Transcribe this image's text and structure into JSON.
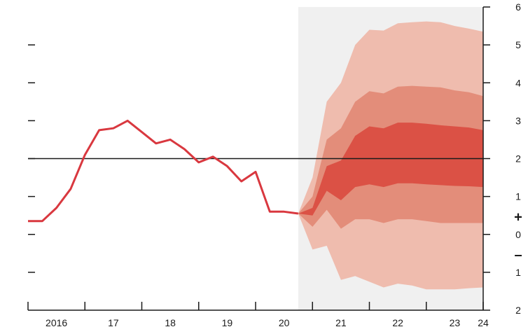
{
  "chart_data": {
    "type": "area",
    "title": "",
    "xlabel": "",
    "ylabel": "",
    "x_tick_labels": [
      {
        "label": "2016",
        "x": 2016.0
      },
      {
        "label": "17",
        "x": 2017.0
      },
      {
        "label": "18",
        "x": 2018.0
      },
      {
        "label": "19",
        "x": 2019.0
      },
      {
        "label": "20",
        "x": 2020.0
      },
      {
        "label": "21",
        "x": 2021.0
      },
      {
        "label": "22",
        "x": 2022.0
      },
      {
        "label": "23",
        "x": 2023.0
      },
      {
        "label": "24",
        "x": 2023.5
      }
    ],
    "x_tick_marks": [
      2015.5,
      2016.5,
      2017.5,
      2018.5,
      2019.5,
      2020.5,
      2021.5,
      2022.5,
      2023.5
    ],
    "y_tick_labels": [
      {
        "label": "6",
        "y": 6
      },
      {
        "label": "5",
        "y": 5
      },
      {
        "label": "4",
        "y": 4
      },
      {
        "label": "3",
        "y": 3
      },
      {
        "label": "2",
        "y": 2
      },
      {
        "label": "1",
        "y": 1
      },
      {
        "label": "0",
        "y": 0
      },
      {
        "label": "1",
        "y": -1
      },
      {
        "label": "2",
        "y": -2
      }
    ],
    "sign_labels": {
      "plus": "+",
      "minus": "–"
    },
    "xlim": [
      2015.5,
      2023.5
    ],
    "ylim": [
      -2,
      6
    ],
    "target_line": 2,
    "projection_start": 2020.25,
    "history": {
      "x": [
        2015.5,
        2015.75,
        2016.0,
        2016.25,
        2016.5,
        2016.75,
        2017.0,
        2017.25,
        2017.5,
        2017.75,
        2018.0,
        2018.25,
        2018.5,
        2018.75,
        2019.0,
        2019.25,
        2019.5,
        2019.75,
        2020.0,
        2020.25
      ],
      "y": [
        0.35,
        0.35,
        0.7,
        1.2,
        2.1,
        2.75,
        2.8,
        3.0,
        2.7,
        2.4,
        2.5,
        2.25,
        1.9,
        2.05,
        1.8,
        1.4,
        1.65,
        0.6,
        0.6,
        0.55
      ]
    },
    "fan": {
      "x": [
        2020.25,
        2020.5,
        2020.75,
        2021.0,
        2021.25,
        2021.5,
        2021.75,
        2022.0,
        2022.25,
        2022.5,
        2022.75,
        2023.0,
        2023.25,
        2023.5
      ],
      "outer_upper": [
        0.55,
        1.5,
        3.5,
        4.0,
        5.0,
        5.4,
        5.38,
        5.57,
        5.6,
        5.62,
        5.6,
        5.5,
        5.43,
        5.35
      ],
      "outer_lower": [
        0.55,
        -0.4,
        -0.3,
        -1.2,
        -1.1,
        -1.25,
        -1.4,
        -1.3,
        -1.35,
        -1.45,
        -1.45,
        -1.45,
        -1.42,
        -1.4
      ],
      "middle_upper": [
        0.55,
        1.0,
        2.5,
        2.8,
        3.5,
        3.78,
        3.72,
        3.9,
        3.92,
        3.9,
        3.88,
        3.8,
        3.75,
        3.65
      ],
      "middle_lower": [
        0.55,
        0.2,
        0.65,
        0.15,
        0.4,
        0.4,
        0.3,
        0.4,
        0.4,
        0.35,
        0.3,
        0.3,
        0.3,
        0.3
      ],
      "inner_upper": [
        0.55,
        0.7,
        1.8,
        1.95,
        2.6,
        2.85,
        2.8,
        2.95,
        2.95,
        2.92,
        2.88,
        2.85,
        2.82,
        2.75
      ],
      "inner_lower": [
        0.55,
        0.5,
        1.15,
        0.9,
        1.25,
        1.32,
        1.25,
        1.35,
        1.35,
        1.32,
        1.3,
        1.28,
        1.27,
        1.25
      ]
    },
    "colors": {
      "history_line": "#d9383f",
      "target_line": "#1a1a1a",
      "projection_bg": "#f0f0f0",
      "fan_outer": "#efbcae",
      "fan_middle": "#e38d7a",
      "fan_inner": "#db5145",
      "axis": "#1a1a1a"
    },
    "grid": false,
    "legend": "none"
  }
}
